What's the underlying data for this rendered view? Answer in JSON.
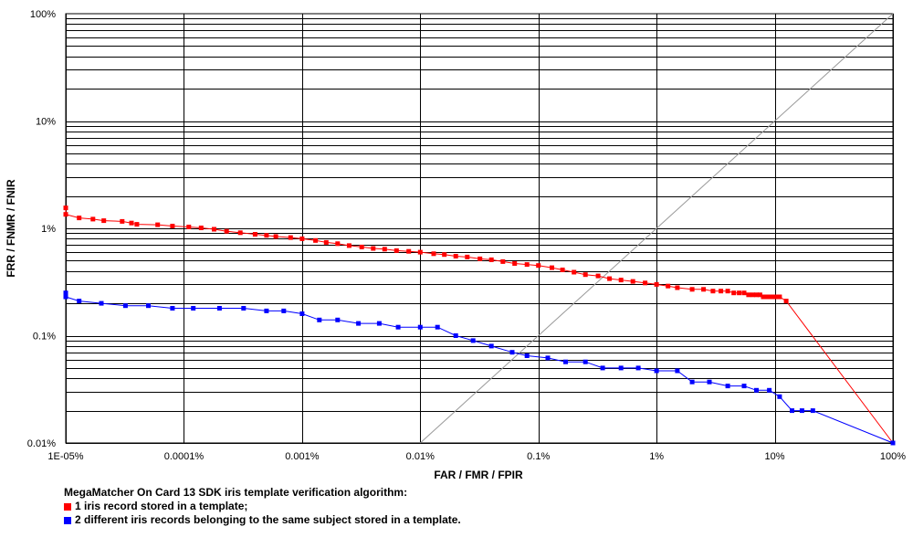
{
  "chart_data": {
    "type": "line",
    "xscale": "log",
    "yscale": "log",
    "xlim": [
      1e-07,
      1
    ],
    "ylim": [
      0.0001,
      1
    ],
    "grid": true,
    "xlabel": "FAR / FMR / FPIR",
    "ylabel": "FRR / FNMR / FNIR",
    "x_ticks": [
      {
        "value": 1e-07,
        "label": "1E-05%"
      },
      {
        "value": 1e-06,
        "label": "0.0001%"
      },
      {
        "value": 1e-05,
        "label": "0.001%"
      },
      {
        "value": 0.0001,
        "label": "0.01%"
      },
      {
        "value": 0.001,
        "label": "0.1%"
      },
      {
        "value": 0.01,
        "label": "1%"
      },
      {
        "value": 0.1,
        "label": "10%"
      },
      {
        "value": 1,
        "label": "100%"
      }
    ],
    "y_ticks": [
      {
        "value": 1,
        "label": "100%"
      },
      {
        "value": 0.1,
        "label": "10%"
      },
      {
        "value": 0.01,
        "label": "1%"
      },
      {
        "value": 0.001,
        "label": "0.1%"
      },
      {
        "value": 0.0001,
        "label": "0.01%"
      }
    ],
    "reference_line": {
      "color": "#999999",
      "from": [
        0.0001,
        0.0001
      ],
      "to": [
        1,
        1
      ]
    },
    "legend_title": "MegaMatcher On Card 13 SDK iris template verification algorithm:",
    "series": [
      {
        "name": "1 iris record stored in a template;",
        "color": "#ff0000",
        "x": [
          1e-07,
          1e-07,
          1.3e-07,
          1.7e-07,
          2.1e-07,
          3e-07,
          3.6e-07,
          4e-07,
          6e-07,
          8e-07,
          1.1e-06,
          1.4e-06,
          1.8e-06,
          2.3e-06,
          3e-06,
          4e-06,
          5e-06,
          6e-06,
          8e-06,
          1e-05,
          1.3e-05,
          1.6e-05,
          2e-05,
          2.5e-05,
          3.2e-05,
          4e-05,
          5e-05,
          6.3e-05,
          8e-05,
          0.0001,
          0.00013,
          0.00016,
          0.0002,
          0.00025,
          0.00032,
          0.0004,
          0.0005,
          0.00063,
          0.0008,
          0.001,
          0.0013,
          0.0016,
          0.002,
          0.0025,
          0.0032,
          0.004,
          0.005,
          0.0063,
          0.008,
          0.01,
          0.0125,
          0.015,
          0.02,
          0.025,
          0.03,
          0.035,
          0.04,
          0.045,
          0.05,
          0.055,
          0.06,
          0.065,
          0.07,
          0.075,
          0.08,
          0.085,
          0.09,
          0.095,
          0.1,
          0.105,
          0.11,
          0.125,
          1
        ],
        "y": [
          0.0155,
          0.0135,
          0.0125,
          0.0122,
          0.0118,
          0.0116,
          0.0112,
          0.0109,
          0.0108,
          0.0105,
          0.0103,
          0.0101,
          0.0098,
          0.0094,
          0.0091,
          0.0088,
          0.0086,
          0.0084,
          0.0082,
          0.008,
          0.0077,
          0.0074,
          0.0072,
          0.0069,
          0.0067,
          0.0065,
          0.0064,
          0.0062,
          0.0061,
          0.006,
          0.0058,
          0.0057,
          0.0055,
          0.0054,
          0.0052,
          0.0051,
          0.0049,
          0.0047,
          0.0046,
          0.0045,
          0.0043,
          0.0041,
          0.0039,
          0.0037,
          0.0036,
          0.0034,
          0.0033,
          0.0032,
          0.0031,
          0.003,
          0.0029,
          0.0028,
          0.0027,
          0.0027,
          0.0026,
          0.0026,
          0.0026,
          0.0025,
          0.0025,
          0.0025,
          0.0024,
          0.0024,
          0.0024,
          0.0024,
          0.0023,
          0.0023,
          0.0023,
          0.0023,
          0.0023,
          0.0023,
          0.0023,
          0.0021,
          0.0001
        ]
      },
      {
        "name": "2 different iris records belonging to the same subject stored in a template.",
        "color": "#0000ff",
        "x": [
          1e-07,
          1e-07,
          1.3e-07,
          2e-07,
          3.2e-07,
          5e-07,
          8e-07,
          1.2e-06,
          2e-06,
          3.2e-06,
          5e-06,
          7e-06,
          1e-05,
          1.4e-05,
          2e-05,
          3e-05,
          4.5e-05,
          6.5e-05,
          0.0001,
          0.00014,
          0.0002,
          0.00028,
          0.0004,
          0.0006,
          0.0008,
          0.0012,
          0.0017,
          0.0025,
          0.0035,
          0.005,
          0.007,
          0.01,
          0.015,
          0.02,
          0.028,
          0.04,
          0.055,
          0.07,
          0.09,
          0.11,
          0.14,
          0.17,
          0.21,
          1
        ],
        "y": [
          0.0025,
          0.0023,
          0.0021,
          0.002,
          0.0019,
          0.0019,
          0.0018,
          0.0018,
          0.0018,
          0.0018,
          0.0017,
          0.0017,
          0.0016,
          0.0014,
          0.0014,
          0.0013,
          0.0013,
          0.0012,
          0.0012,
          0.0012,
          0.001,
          0.0009,
          0.0008,
          0.0007,
          0.00065,
          0.00062,
          0.00057,
          0.00057,
          0.0005,
          0.0005,
          0.0005,
          0.00047,
          0.00047,
          0.00037,
          0.00037,
          0.00034,
          0.00034,
          0.00031,
          0.00031,
          0.00027,
          0.0002,
          0.0002,
          0.0002,
          0.0001
        ]
      }
    ]
  }
}
